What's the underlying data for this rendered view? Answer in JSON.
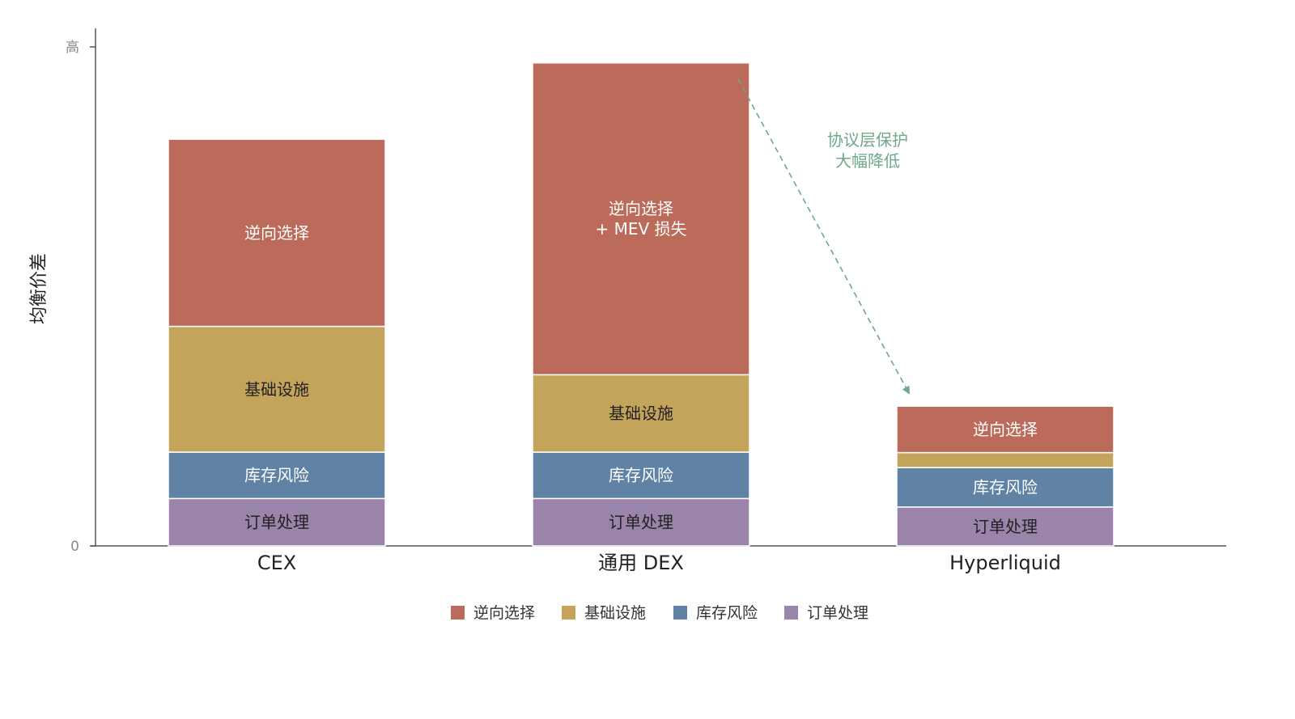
{
  "chart_data": {
    "type": "bar",
    "stacked": true,
    "title": "",
    "xlabel": "",
    "ylabel": "均衡价差",
    "ylim": [
      0,
      100
    ],
    "y_ticks": [
      {
        "value": 0,
        "label": "0"
      },
      {
        "value": 100,
        "label": "高"
      }
    ],
    "categories": [
      "CEX",
      "通用 DEX",
      "Hyperliquid"
    ],
    "series": [
      {
        "name": "订单处理",
        "color": "#9b84aa",
        "text_color": "#222222",
        "values": [
          9.5,
          9.5,
          7.8
        ]
      },
      {
        "name": "库存风险",
        "color": "#5f82a5",
        "text_color": "#ffffff",
        "values": [
          9.3,
          9.3,
          7.9
        ]
      },
      {
        "name": "基础设施",
        "color": "#c4a35a",
        "text_color": "#222222",
        "values": [
          25.2,
          15.5,
          3.0
        ]
      },
      {
        "name": "逆向选择",
        "color": "#bc6b5a",
        "text_color": "#ffffff",
        "values": [
          37.5,
          62.5,
          9.3
        ]
      }
    ],
    "segment_labels": [
      [
        "订单处理",
        "订单处理",
        "订单处理"
      ],
      [
        "库存风险",
        "库存风险",
        "库存风险"
      ],
      [
        "基础设施",
        "基础设施",
        ""
      ],
      [
        "逆向选择",
        "逆向选择\n+ MEV 损失",
        "逆向选择"
      ]
    ],
    "annotation": {
      "text": [
        "协议层保护",
        "大幅降低"
      ],
      "from_category": "通用 DEX",
      "to_category": "Hyperliquid",
      "color": "#6fa88a"
    },
    "legend": {
      "position": "bottom-center",
      "items": [
        {
          "name": "逆向选择",
          "color": "#bc6b5a"
        },
        {
          "name": "基础设施",
          "color": "#c4a35a"
        },
        {
          "name": "库存风险",
          "color": "#5f82a5"
        },
        {
          "name": "订单处理",
          "color": "#9b84aa"
        }
      ]
    },
    "grid": false
  }
}
